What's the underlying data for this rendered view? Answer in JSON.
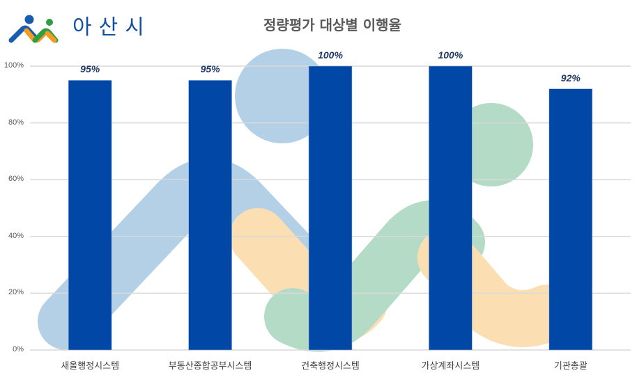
{
  "logo": {
    "text": "아산시",
    "icon": "asan-city-logo-icon",
    "colors": {
      "blue": "#1a5cb0",
      "orange": "#f39c1f",
      "green": "#2e9e44"
    }
  },
  "chart_data": {
    "type": "bar",
    "title": "정량평가 대상별 이행율",
    "xlabel": "",
    "ylabel": "",
    "categories": [
      "새올행정시스템",
      "부동산종합공부시스템",
      "건축행정시스템",
      "가상계좌시스템",
      "기관총괄"
    ],
    "values": [
      0.95,
      0.95,
      1.0,
      1.0,
      0.92
    ],
    "data_labels": [
      "95%",
      "95%",
      "100%",
      "100%",
      "92%"
    ],
    "ylim": [
      0,
      1
    ],
    "yticks": [
      "0%",
      "20%",
      "40%",
      "60%",
      "80%",
      "100%"
    ],
    "grid": true,
    "legend": "none",
    "bar_color": "#0047a6",
    "decoration_colors": {
      "light_blue": "#b4d0e7",
      "light_orange": "#fbdfb3",
      "light_green": "#b3dbc6"
    }
  }
}
